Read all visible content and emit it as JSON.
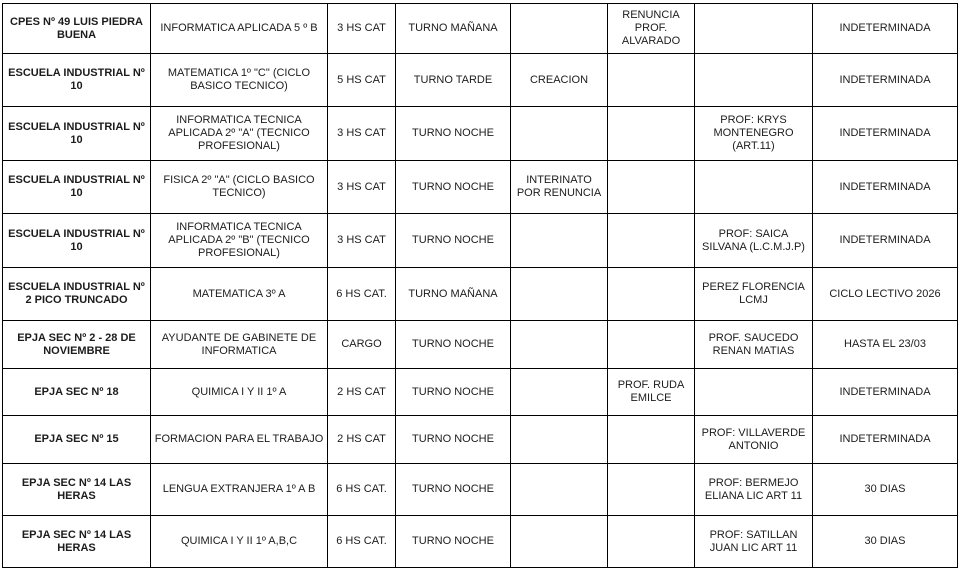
{
  "table": {
    "columns": [
      "school",
      "subject",
      "hours",
      "shift",
      "status",
      "note",
      "professor",
      "duration"
    ],
    "border_color": "#000000",
    "background_color": "#ffffff",
    "rows": [
      {
        "school": "CPES Nº 49 LUIS PIEDRA BUENA",
        "subject": "INFORMATICA APLICADA 5 º B",
        "hours": "3 HS CAT",
        "shift": "TURNO MAÑANA",
        "status": "",
        "note": "RENUNCIA PROF. ALVARADO",
        "professor": "",
        "duration": "INDETERMINADA"
      },
      {
        "school": "ESCUELA INDUSTRIAL Nº 10",
        "subject": "MATEMATICA 1º \"C\" (CICLO BASICO TECNICO)",
        "hours": "5 HS CAT",
        "shift": "TURNO TARDE",
        "status": "CREACION",
        "note": "",
        "professor": "",
        "duration": "INDETERMINADA"
      },
      {
        "school": "ESCUELA INDUSTRIAL Nº 10",
        "subject": "INFORMATICA TECNICA APLICADA 2º \"A\" (TECNICO PROFESIONAL)",
        "hours": "3 HS CAT",
        "shift": "TURNO NOCHE",
        "status": "",
        "note": "",
        "professor": "PROF: KRYS MONTENEGRO (ART.11)",
        "duration": "INDETERMINADA"
      },
      {
        "school": "ESCUELA INDUSTRIAL Nº 10",
        "subject": "FISICA 2º \"A\" (CICLO BASICO TECNICO)",
        "hours": "3 HS CAT",
        "shift": "TURNO NOCHE",
        "status": "INTERINATO POR RENUNCIA",
        "note": "",
        "professor": "",
        "duration": "INDETERMINADA"
      },
      {
        "school": "ESCUELA INDUSTRIAL Nº 10",
        "subject": "INFORMATICA TECNICA APLICADA 2º \"B\" (TECNICO PROFESIONAL)",
        "hours": "3 HS CAT",
        "shift": "TURNO NOCHE",
        "status": "",
        "note": "",
        "professor": "PROF: SAICA SILVANA (L.C.M.J.P)",
        "duration": "INDETERMINADA"
      },
      {
        "school": "ESCUELA INDUSTRIAL Nº 2 PICO TRUNCADO",
        "subject": "MATEMATICA 3º A",
        "hours": "6 HS CAT.",
        "shift": "TURNO MAÑANA",
        "status": "",
        "note": "",
        "professor": "PEREZ FLORENCIA LCMJ",
        "duration": "CICLO LECTIVO 2026"
      },
      {
        "school": "EPJA SEC Nº 2 - 28 DE NOVIEMBRE",
        "subject": "AYUDANTE DE GABINETE DE INFORMATICA",
        "hours": "CARGO",
        "shift": "TURNO NOCHE",
        "status": "",
        "note": "",
        "professor": "PROF. SAUCEDO RENAN MATIAS",
        "duration": "HASTA EL 23/03"
      },
      {
        "school": "EPJA SEC Nº 18",
        "subject": "QUIMICA I Y II 1º A",
        "hours": "2 HS CAT",
        "shift": "TURNO NOCHE",
        "status": "",
        "note": "PROF. RUDA EMILCE",
        "professor": "",
        "duration": "INDETERMINADA"
      },
      {
        "school": "EPJA SEC Nº 15",
        "subject": "FORMACION PARA EL TRABAJO",
        "hours": "2 HS CAT",
        "shift": "TURNO NOCHE",
        "status": "",
        "note": "",
        "professor": "PROF: VILLAVERDE ANTONIO",
        "duration": "INDETERMINADA"
      },
      {
        "school": "EPJA SEC Nº 14 LAS HERAS",
        "subject": "LENGUA EXTRANJERA 1º A B",
        "hours": "6 HS CAT.",
        "shift": "TURNO NOCHE",
        "status": "",
        "note": "",
        "professor": "PROF: BERMEJO ELIANA LIC ART 11",
        "duration": "30 DIAS"
      },
      {
        "school": "EPJA SEC Nº 14 LAS HERAS",
        "subject": "QUIMICA I Y II 1º A,B,C",
        "hours": "6 HS CAT.",
        "shift": "TURNO NOCHE",
        "status": "",
        "note": "",
        "professor": "PROF: SATILLAN JUAN LIC ART 11",
        "duration": "30 DIAS"
      }
    ]
  }
}
